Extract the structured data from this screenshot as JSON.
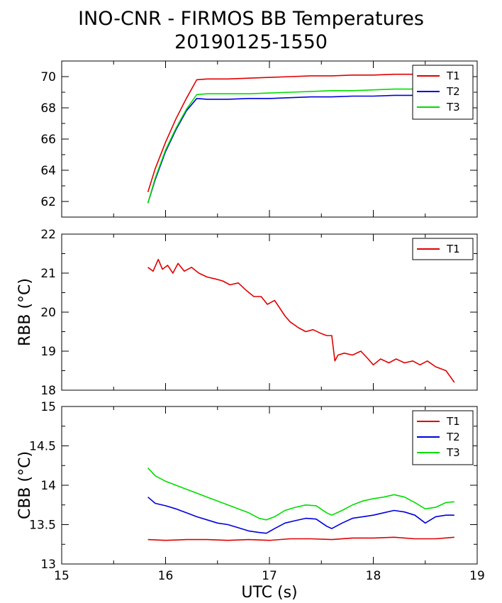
{
  "header": {
    "title_line1": "INO-CNR - FIRMOS BB Temperatures",
    "title_line2": "20190125-1550"
  },
  "colors": {
    "T1": "#e00000",
    "T2": "#0000dd",
    "T3": "#00dd00"
  },
  "chart_data": [
    {
      "type": "line",
      "title": "",
      "xlabel": "",
      "ylabel": "",
      "xlim": [
        15,
        19
      ],
      "ylim": [
        61,
        71
      ],
      "yticks": [
        62,
        64,
        66,
        68,
        70
      ],
      "legend": "top-right",
      "series": [
        {
          "name": "T1",
          "color": "#e00000",
          "x": [
            15.83,
            15.9,
            16.0,
            16.1,
            16.2,
            16.3,
            16.4,
            16.6,
            16.8,
            17.0,
            17.2,
            17.4,
            17.6,
            17.8,
            18.0,
            18.2,
            18.4,
            18.6,
            18.78
          ],
          "y": [
            62.6,
            64.1,
            65.8,
            67.3,
            68.6,
            69.8,
            69.85,
            69.85,
            69.9,
            69.95,
            70.0,
            70.05,
            70.05,
            70.1,
            70.1,
            70.15,
            70.15,
            70.15,
            70.15
          ]
        },
        {
          "name": "T2",
          "color": "#0000dd",
          "x": [
            15.83,
            15.9,
            16.0,
            16.1,
            16.2,
            16.3,
            16.4,
            16.6,
            16.8,
            17.0,
            17.2,
            17.4,
            17.6,
            17.8,
            18.0,
            18.2,
            18.4,
            18.6,
            18.78
          ],
          "y": [
            61.9,
            63.4,
            65.2,
            66.6,
            67.8,
            68.6,
            68.55,
            68.55,
            68.6,
            68.6,
            68.65,
            68.7,
            68.7,
            68.75,
            68.75,
            68.8,
            68.8,
            68.8,
            68.8
          ]
        },
        {
          "name": "T3",
          "color": "#00dd00",
          "x": [
            15.83,
            15.9,
            16.0,
            16.1,
            16.2,
            16.3,
            16.4,
            16.6,
            16.8,
            17.0,
            17.2,
            17.4,
            17.6,
            17.8,
            18.0,
            18.2,
            18.4,
            18.6,
            18.78
          ],
          "y": [
            61.9,
            63.5,
            65.3,
            66.7,
            67.9,
            68.85,
            68.9,
            68.9,
            68.9,
            68.95,
            69.0,
            69.05,
            69.1,
            69.1,
            69.15,
            69.2,
            69.2,
            69.25,
            69.25
          ]
        }
      ]
    },
    {
      "type": "line",
      "title": "",
      "xlabel": "",
      "ylabel": "RBB (°C)",
      "xlim": [
        15,
        19
      ],
      "ylim": [
        18,
        22
      ],
      "yticks": [
        18,
        19,
        20,
        21,
        22
      ],
      "legend": "top-right",
      "series": [
        {
          "name": "T1",
          "color": "#e00000",
          "x": [
            15.83,
            15.88,
            15.93,
            15.97,
            16.02,
            16.07,
            16.12,
            16.18,
            16.25,
            16.32,
            16.4,
            16.48,
            16.55,
            16.62,
            16.7,
            16.78,
            16.85,
            16.92,
            16.98,
            17.05,
            17.1,
            17.15,
            17.2,
            17.28,
            17.35,
            17.42,
            17.5,
            17.55,
            17.6,
            17.63,
            17.66,
            17.72,
            17.8,
            17.88,
            17.95,
            18.0,
            18.07,
            18.15,
            18.22,
            18.3,
            18.38,
            18.45,
            18.52,
            18.6,
            18.65,
            18.7,
            18.78
          ],
          "y": [
            21.15,
            21.05,
            21.35,
            21.1,
            21.2,
            21.0,
            21.25,
            21.05,
            21.15,
            21.0,
            20.9,
            20.85,
            20.8,
            20.7,
            20.75,
            20.55,
            20.4,
            20.4,
            20.2,
            20.3,
            20.1,
            19.9,
            19.75,
            19.6,
            19.5,
            19.55,
            19.45,
            19.4,
            19.4,
            18.75,
            18.9,
            18.95,
            18.9,
            19.0,
            18.8,
            18.65,
            18.8,
            18.7,
            18.8,
            18.7,
            18.75,
            18.65,
            18.75,
            18.6,
            18.55,
            18.5,
            18.2
          ]
        }
      ]
    },
    {
      "type": "line",
      "title": "",
      "xlabel": "UTC (s)",
      "ylabel": "CBB (°C)",
      "xlim": [
        15,
        19
      ],
      "ylim": [
        13,
        15
      ],
      "xticks": [
        15,
        16,
        17,
        18,
        19
      ],
      "yticks": [
        13,
        13.5,
        14,
        14.5,
        15
      ],
      "legend": "top-right",
      "series": [
        {
          "name": "T1",
          "color": "#e00000",
          "x": [
            15.83,
            16.0,
            16.2,
            16.4,
            16.6,
            16.8,
            17.0,
            17.2,
            17.4,
            17.6,
            17.8,
            18.0,
            18.2,
            18.4,
            18.6,
            18.78
          ],
          "y": [
            13.31,
            13.3,
            13.31,
            13.31,
            13.3,
            13.31,
            13.3,
            13.32,
            13.32,
            13.31,
            13.33,
            13.33,
            13.34,
            13.32,
            13.32,
            13.34
          ]
        },
        {
          "name": "T2",
          "color": "#0000dd",
          "x": [
            15.83,
            15.9,
            16.0,
            16.1,
            16.2,
            16.3,
            16.4,
            16.5,
            16.6,
            16.7,
            16.8,
            16.9,
            16.97,
            17.05,
            17.15,
            17.25,
            17.35,
            17.45,
            17.55,
            17.6,
            17.7,
            17.8,
            17.9,
            18.0,
            18.1,
            18.2,
            18.3,
            18.4,
            18.5,
            18.6,
            18.7,
            18.78
          ],
          "y": [
            13.85,
            13.77,
            13.74,
            13.7,
            13.65,
            13.6,
            13.56,
            13.52,
            13.5,
            13.46,
            13.42,
            13.4,
            13.39,
            13.45,
            13.52,
            13.55,
            13.58,
            13.57,
            13.48,
            13.45,
            13.52,
            13.58,
            13.6,
            13.62,
            13.65,
            13.68,
            13.66,
            13.62,
            13.52,
            13.6,
            13.62,
            13.62
          ]
        },
        {
          "name": "T3",
          "color": "#00dd00",
          "x": [
            15.83,
            15.9,
            16.0,
            16.1,
            16.2,
            16.3,
            16.4,
            16.5,
            16.6,
            16.7,
            16.8,
            16.9,
            16.97,
            17.05,
            17.15,
            17.25,
            17.35,
            17.45,
            17.55,
            17.6,
            17.7,
            17.8,
            17.9,
            18.0,
            18.1,
            18.2,
            18.3,
            18.4,
            18.5,
            18.6,
            18.7,
            18.78
          ],
          "y": [
            14.22,
            14.12,
            14.05,
            14.0,
            13.95,
            13.9,
            13.85,
            13.8,
            13.75,
            13.7,
            13.65,
            13.58,
            13.56,
            13.6,
            13.68,
            13.72,
            13.75,
            13.74,
            13.65,
            13.62,
            13.68,
            13.75,
            13.8,
            13.83,
            13.85,
            13.88,
            13.85,
            13.78,
            13.7,
            13.72,
            13.78,
            13.79
          ]
        }
      ]
    }
  ]
}
